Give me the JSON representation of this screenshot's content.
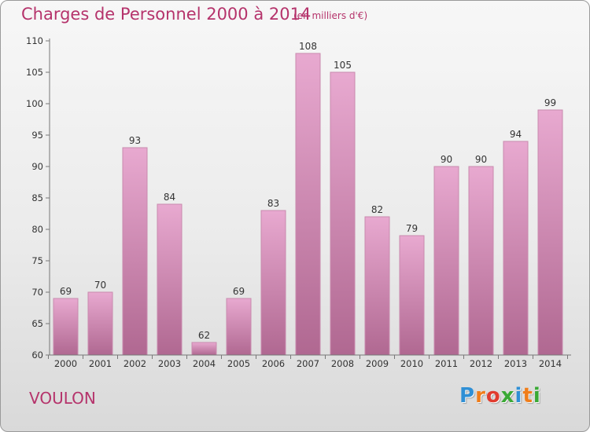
{
  "header": {
    "title": "Charges de Personnel 2000 à 2014",
    "subtitle": "(en milliers d'€)"
  },
  "footer": {
    "commune": "VOULON",
    "logo": [
      "P",
      "r",
      "o",
      "x",
      "i",
      "t",
      "i"
    ]
  },
  "colors": {
    "title": "#b5336b",
    "bar_top": "#e8a9d0",
    "bar_bottom": "#b06891",
    "logo": [
      "#2f8fd5",
      "#f07d1a",
      "#e03c2f",
      "#3aa935",
      "#2f8fd5",
      "#f07d1a",
      "#3aa935"
    ]
  },
  "chart_data": {
    "type": "bar",
    "title": "Charges de Personnel 2000 à 2014",
    "subtitle": "(en milliers d'€)",
    "xlabel": "",
    "ylabel": "",
    "categories": [
      "2000",
      "2001",
      "2002",
      "2003",
      "2004",
      "2005",
      "2006",
      "2007",
      "2008",
      "2009",
      "2010",
      "2011",
      "2012",
      "2013",
      "2014"
    ],
    "values": [
      69,
      70,
      93,
      84,
      62,
      69,
      83,
      108,
      105,
      82,
      79,
      90,
      90,
      94,
      99
    ],
    "ylim": [
      60,
      110
    ],
    "yticks": [
      60,
      65,
      70,
      75,
      80,
      85,
      90,
      95,
      100,
      105,
      110
    ],
    "grid": false,
    "data_labels": true
  }
}
